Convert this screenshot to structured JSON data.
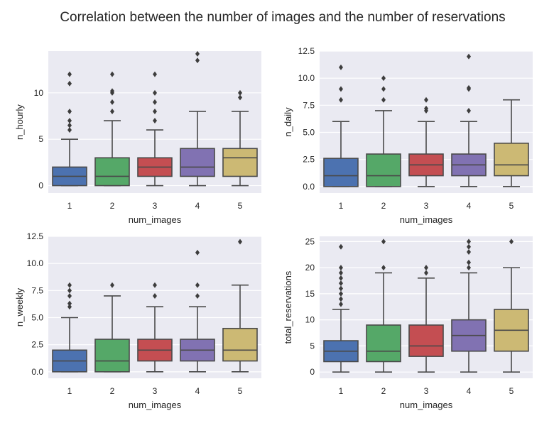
{
  "title": "Correlation between the number of images and the number of reservations",
  "chart_data": [
    {
      "type": "box",
      "xlabel": "num_images",
      "ylabel": "n_hourly",
      "categories": [
        "1",
        "2",
        "3",
        "4",
        "5"
      ],
      "ylim": [
        -0.8,
        14.5
      ],
      "yticks": [
        0,
        5,
        10
      ],
      "ytick_labels": [
        "0",
        "5",
        "10"
      ],
      "colors": [
        "#4c72b0",
        "#55a868",
        "#c44e52",
        "#8172b2",
        "#ccb974"
      ],
      "boxes": [
        {
          "whislo": 0,
          "q1": 0,
          "med": 1,
          "q3": 2,
          "whishi": 5,
          "fliers": [
            6,
            6.5,
            7,
            8,
            11,
            12
          ]
        },
        {
          "whislo": 0,
          "q1": 0,
          "med": 1,
          "q3": 3,
          "whishi": 7,
          "fliers": [
            8,
            9,
            10,
            10.2,
            12
          ]
        },
        {
          "whislo": 0,
          "q1": 1,
          "med": 2,
          "q3": 3,
          "whishi": 6,
          "fliers": [
            7,
            8,
            9,
            10,
            12
          ]
        },
        {
          "whislo": 0,
          "q1": 1,
          "med": 2,
          "q3": 4,
          "whishi": 8,
          "fliers": [
            13.5,
            14.2
          ]
        },
        {
          "whislo": 0,
          "q1": 1,
          "med": 3,
          "q3": 4,
          "whishi": 8,
          "fliers": [
            9.5,
            10
          ]
        }
      ]
    },
    {
      "type": "box",
      "xlabel": "num_images",
      "ylabel": "n_daily",
      "categories": [
        "1",
        "2",
        "3",
        "4",
        "5"
      ],
      "ylim": [
        -0.6,
        12.5
      ],
      "yticks": [
        0,
        2.5,
        5,
        7.5,
        10,
        12.5
      ],
      "ytick_labels": [
        "0.0",
        "2.5",
        "5.0",
        "7.5",
        "10.0",
        "12.5"
      ],
      "colors": [
        "#4c72b0",
        "#55a868",
        "#c44e52",
        "#8172b2",
        "#ccb974"
      ],
      "boxes": [
        {
          "whislo": 0,
          "q1": 0,
          "med": 1,
          "q3": 2.6,
          "whishi": 6,
          "fliers": [
            8,
            9,
            11
          ]
        },
        {
          "whislo": 0,
          "q1": 0,
          "med": 1,
          "q3": 3,
          "whishi": 7,
          "fliers": [
            8,
            9,
            10
          ]
        },
        {
          "whislo": 0,
          "q1": 1,
          "med": 2,
          "q3": 3,
          "whishi": 6,
          "fliers": [
            7,
            7.2,
            8
          ]
        },
        {
          "whislo": 0,
          "q1": 1,
          "med": 2,
          "q3": 3,
          "whishi": 6,
          "fliers": [
            7,
            9,
            9.1,
            12
          ]
        },
        {
          "whislo": 0,
          "q1": 1,
          "med": 2,
          "q3": 4,
          "whishi": 8,
          "fliers": []
        }
      ]
    },
    {
      "type": "box",
      "xlabel": "num_images",
      "ylabel": "n_weekly",
      "categories": [
        "1",
        "2",
        "3",
        "4",
        "5"
      ],
      "ylim": [
        -0.6,
        12.5
      ],
      "yticks": [
        0,
        2.5,
        5,
        7.5,
        10,
        12.5
      ],
      "ytick_labels": [
        "0.0",
        "2.5",
        "5.0",
        "7.5",
        "10.0",
        "12.5"
      ],
      "colors": [
        "#4c72b0",
        "#55a868",
        "#c44e52",
        "#8172b2",
        "#ccb974"
      ],
      "boxes": [
        {
          "whislo": 0,
          "q1": 0,
          "med": 1,
          "q3": 2,
          "whishi": 5,
          "fliers": [
            6,
            6.3,
            7,
            7.5,
            8
          ]
        },
        {
          "whislo": 0,
          "q1": 0,
          "med": 1,
          "q3": 3,
          "whishi": 7,
          "fliers": [
            8
          ]
        },
        {
          "whislo": 0,
          "q1": 1,
          "med": 2,
          "q3": 3,
          "whishi": 6,
          "fliers": [
            7,
            8
          ]
        },
        {
          "whislo": 0,
          "q1": 1,
          "med": 2,
          "q3": 3,
          "whishi": 6,
          "fliers": [
            7,
            8,
            11
          ]
        },
        {
          "whislo": 0,
          "q1": 1,
          "med": 2,
          "q3": 4,
          "whishi": 8,
          "fliers": [
            12
          ]
        }
      ]
    },
    {
      "type": "box",
      "xlabel": "num_images",
      "ylabel": "total_reservations",
      "categories": [
        "1",
        "2",
        "3",
        "4",
        "5"
      ],
      "ylim": [
        -1.2,
        26
      ],
      "yticks": [
        0,
        5,
        10,
        15,
        20,
        25
      ],
      "ytick_labels": [
        "0",
        "5",
        "10",
        "15",
        "20",
        "25"
      ],
      "colors": [
        "#4c72b0",
        "#55a868",
        "#c44e52",
        "#8172b2",
        "#ccb974"
      ],
      "boxes": [
        {
          "whislo": 0,
          "q1": 2,
          "med": 4,
          "q3": 6,
          "whishi": 12,
          "fliers": [
            13,
            14,
            15,
            16,
            17,
            18,
            19,
            20,
            24
          ]
        },
        {
          "whislo": 0,
          "q1": 2,
          "med": 4,
          "q3": 9,
          "whishi": 19,
          "fliers": [
            20,
            25
          ]
        },
        {
          "whislo": 0,
          "q1": 3,
          "med": 5,
          "q3": 9,
          "whishi": 18,
          "fliers": [
            19,
            20
          ]
        },
        {
          "whislo": 0,
          "q1": 4,
          "med": 7,
          "q3": 10,
          "whishi": 19,
          "fliers": [
            20,
            21,
            23,
            24,
            25
          ]
        },
        {
          "whislo": 0,
          "q1": 4,
          "med": 8,
          "q3": 12,
          "whishi": 20,
          "fliers": [
            25
          ]
        }
      ]
    }
  ]
}
